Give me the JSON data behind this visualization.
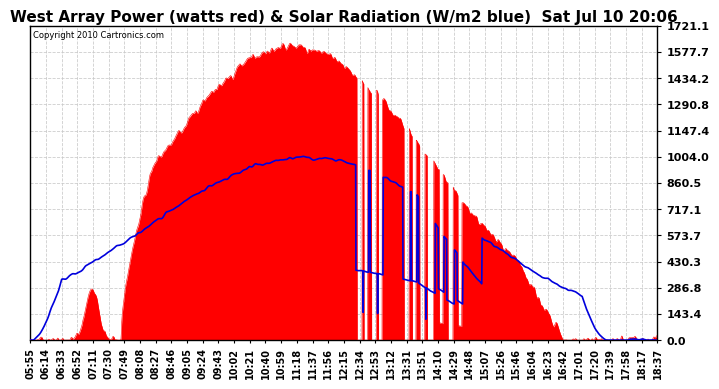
{
  "title": "West Array Power (watts red) & Solar Radiation (W/m2 blue)  Sat Jul 10 20:06",
  "copyright": "Copyright 2010 Cartronics.com",
  "background_color": "#ffffff",
  "plot_bg_color": "#ffffff",
  "grid_color": "#c8c8c8",
  "red_color": "#ff0000",
  "blue_color": "#0000dd",
  "ylim": [
    0.0,
    1721.1
  ],
  "yticks": [
    0.0,
    143.4,
    286.8,
    430.3,
    573.7,
    717.1,
    860.5,
    1004.0,
    1147.4,
    1290.8,
    1434.2,
    1577.7,
    1721.1
  ],
  "x_labels": [
    "05:55",
    "06:14",
    "06:33",
    "06:52",
    "07:11",
    "07:30",
    "07:49",
    "08:08",
    "08:27",
    "08:46",
    "09:05",
    "09:24",
    "09:43",
    "10:02",
    "10:21",
    "10:40",
    "10:59",
    "11:18",
    "11:37",
    "11:56",
    "12:15",
    "12:34",
    "12:53",
    "13:12",
    "13:31",
    "13:51",
    "14:10",
    "14:29",
    "14:48",
    "15:07",
    "15:26",
    "15:46",
    "16:04",
    "16:23",
    "16:42",
    "17:01",
    "17:20",
    "17:39",
    "17:58",
    "18:17",
    "18:37"
  ],
  "xlabel_fontsize": 7,
  "ylabel_fontsize": 8,
  "title_fontsize": 11
}
